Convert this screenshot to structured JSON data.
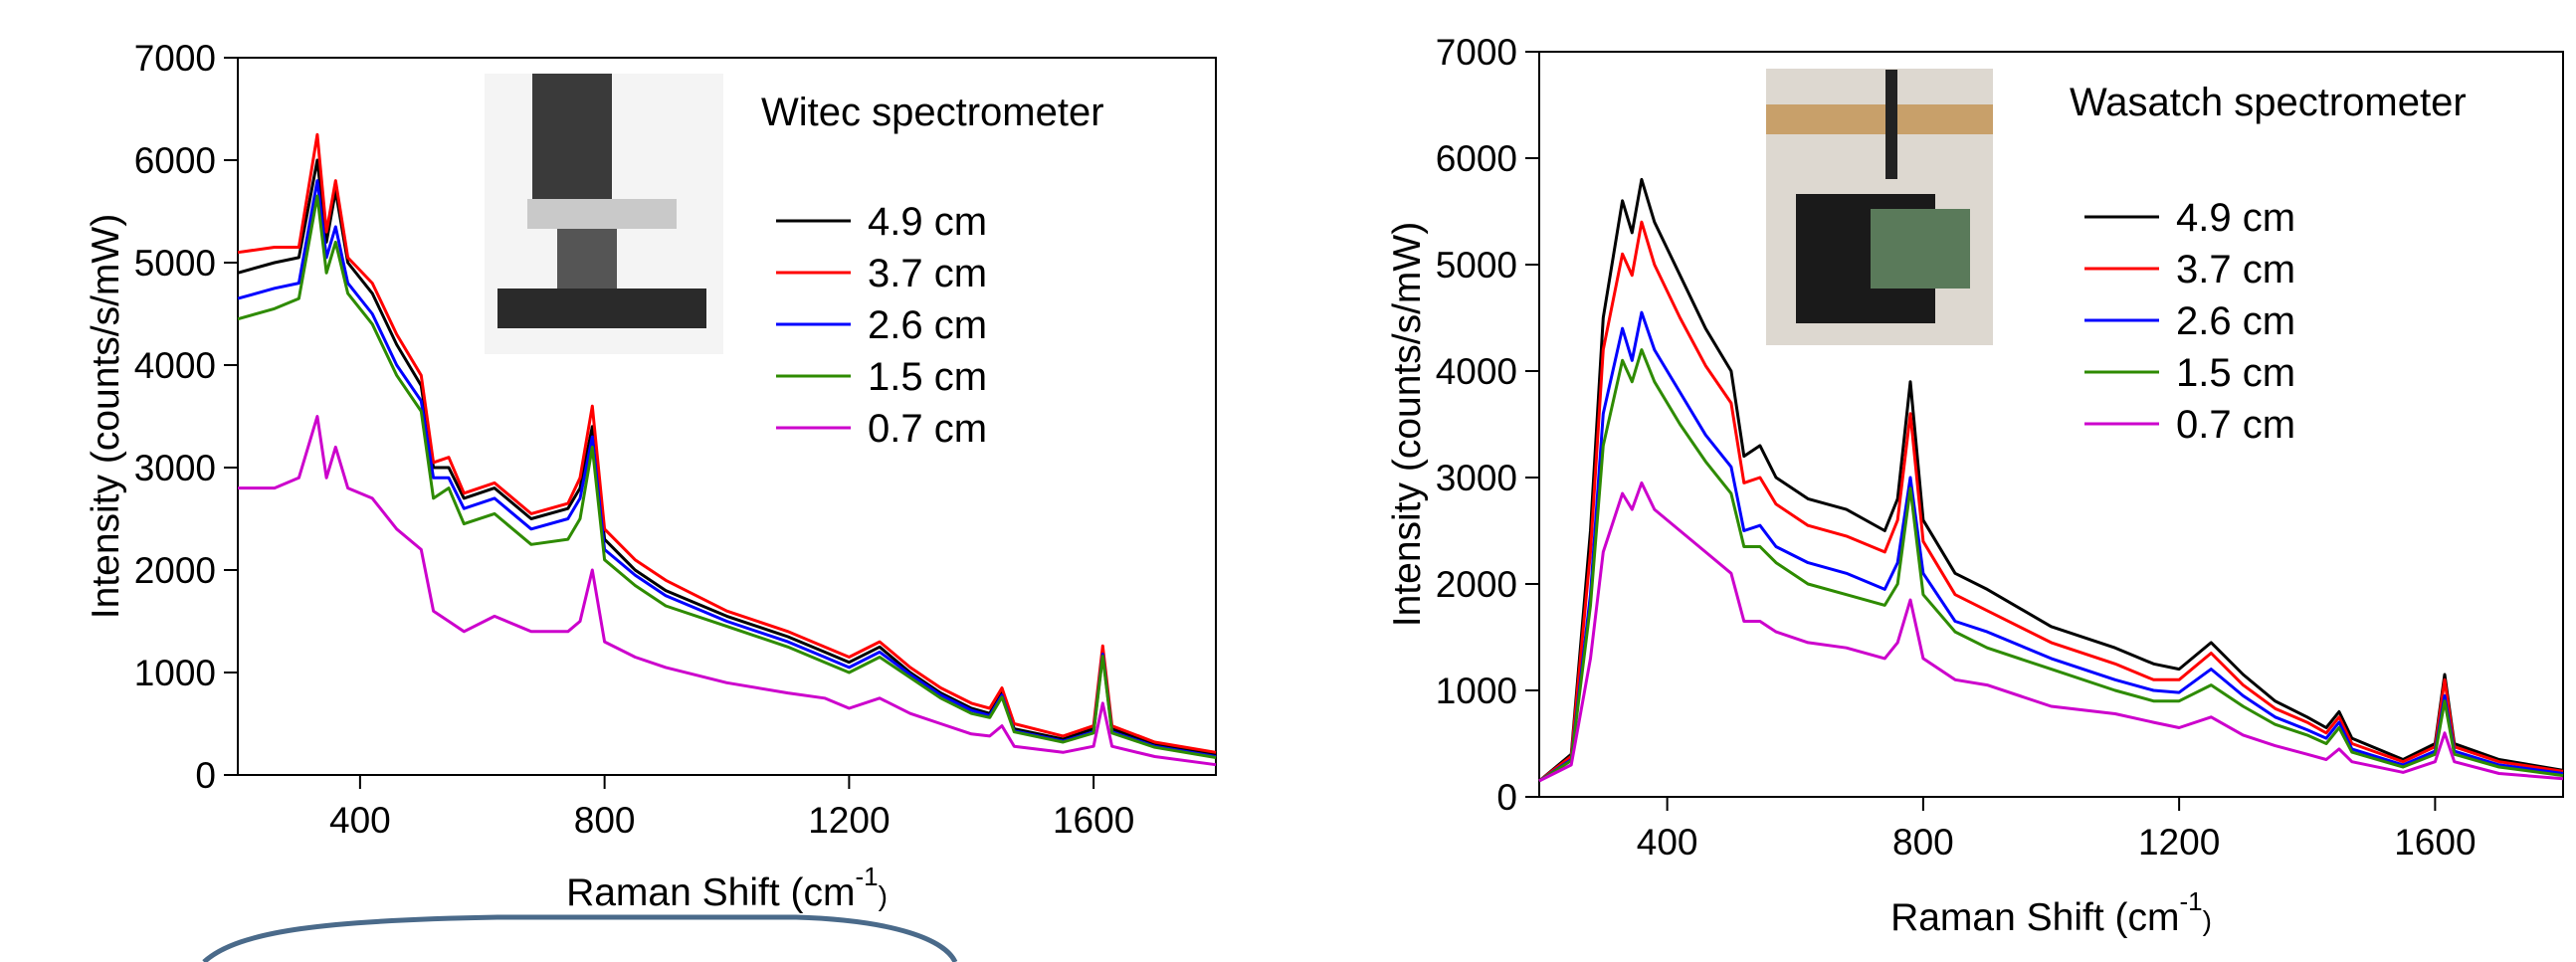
{
  "chart_data": [
    {
      "type": "line",
      "legend_title": "Witec spectrometer",
      "ylabel": "Intensity (counts/s/mW)",
      "xlabel": "Raman Shift (cm",
      "xlabel_sup": "-1",
      "xlabel_end": ")",
      "xlim": [
        200,
        1800
      ],
      "xticks": [
        400,
        800,
        1200,
        1600
      ],
      "ylim": [
        0,
        7000
      ],
      "yticks": [
        0,
        1000,
        2000,
        3000,
        4000,
        5000,
        6000,
        7000
      ],
      "x": [
        200,
        260,
        300,
        330,
        345,
        360,
        380,
        420,
        460,
        500,
        520,
        545,
        570,
        620,
        680,
        740,
        760,
        780,
        800,
        850,
        900,
        1000,
        1100,
        1160,
        1200,
        1250,
        1300,
        1350,
        1400,
        1430,
        1450,
        1470,
        1550,
        1600,
        1615,
        1630,
        1700,
        1800
      ],
      "series": [
        {
          "name": "4.9 cm",
          "color": "#000000",
          "values": [
            4900,
            5000,
            5050,
            6000,
            5200,
            5700,
            5000,
            4700,
            4200,
            3800,
            3000,
            3000,
            2700,
            2800,
            2500,
            2600,
            2800,
            3400,
            2300,
            2000,
            1800,
            1550,
            1350,
            1200,
            1100,
            1250,
            1000,
            800,
            650,
            600,
            800,
            450,
            350,
            450,
            1200,
            450,
            300,
            200
          ]
        },
        {
          "name": "3.7 cm",
          "color": "#ff0000",
          "values": [
            5100,
            5150,
            5150,
            6250,
            5300,
            5800,
            5050,
            4800,
            4300,
            3900,
            3050,
            3100,
            2750,
            2850,
            2550,
            2650,
            2900,
            3600,
            2400,
            2100,
            1900,
            1600,
            1400,
            1250,
            1150,
            1300,
            1050,
            850,
            700,
            650,
            850,
            500,
            380,
            480,
            1260,
            480,
            320,
            220
          ]
        },
        {
          "name": "2.6 cm",
          "color": "#0000ff",
          "values": [
            4650,
            4750,
            4800,
            5800,
            5050,
            5350,
            4800,
            4500,
            4000,
            3650,
            2900,
            2900,
            2600,
            2700,
            2400,
            2500,
            2700,
            3300,
            2200,
            1950,
            1750,
            1500,
            1300,
            1150,
            1050,
            1200,
            980,
            780,
            630,
            580,
            780,
            430,
            330,
            420,
            1180,
            420,
            280,
            180
          ]
        },
        {
          "name": "1.5 cm",
          "color": "#2e8b00",
          "values": [
            4450,
            4550,
            4650,
            5650,
            4900,
            5200,
            4700,
            4400,
            3900,
            3550,
            2700,
            2800,
            2450,
            2550,
            2250,
            2300,
            2500,
            3200,
            2100,
            1850,
            1650,
            1450,
            1250,
            1100,
            1000,
            1150,
            950,
            750,
            600,
            560,
            760,
            420,
            320,
            410,
            1160,
            410,
            270,
            170
          ]
        },
        {
          "name": "0.7 cm",
          "color": "#cc00cc",
          "values": [
            2800,
            2800,
            2900,
            3500,
            2900,
            3200,
            2800,
            2700,
            2400,
            2200,
            1600,
            1500,
            1400,
            1550,
            1400,
            1400,
            1500,
            2000,
            1300,
            1150,
            1050,
            900,
            800,
            750,
            650,
            750,
            600,
            500,
            400,
            380,
            480,
            280,
            220,
            280,
            700,
            280,
            180,
            100
          ]
        }
      ]
    },
    {
      "type": "line",
      "legend_title": "Wasatch spectrometer",
      "ylabel": "Intensity (counts/s/mW)",
      "xlabel": "Raman Shift (cm",
      "xlabel_sup": "-1",
      "xlabel_end": ")",
      "xlim": [
        200,
        1800
      ],
      "xticks": [
        400,
        800,
        1200,
        1600
      ],
      "ylim": [
        0,
        7000
      ],
      "yticks": [
        0,
        1000,
        2000,
        3000,
        4000,
        5000,
        6000,
        7000
      ],
      "x": [
        200,
        250,
        280,
        300,
        330,
        345,
        360,
        380,
        420,
        460,
        500,
        520,
        545,
        570,
        620,
        680,
        740,
        760,
        780,
        800,
        850,
        900,
        1000,
        1100,
        1160,
        1200,
        1250,
        1300,
        1350,
        1400,
        1430,
        1450,
        1470,
        1550,
        1600,
        1615,
        1630,
        1700,
        1800
      ],
      "series": [
        {
          "name": "4.9 cm",
          "color": "#000000",
          "values": [
            150,
            400,
            2500,
            4500,
            5600,
            5300,
            5800,
            5400,
            4900,
            4400,
            4000,
            3200,
            3300,
            3000,
            2800,
            2700,
            2500,
            2800,
            3900,
            2600,
            2100,
            1950,
            1600,
            1400,
            1250,
            1200,
            1450,
            1150,
            900,
            750,
            650,
            800,
            550,
            350,
            500,
            1150,
            500,
            350,
            250
          ]
        },
        {
          "name": "3.7 cm",
          "color": "#ff0000",
          "values": [
            150,
            380,
            2300,
            4200,
            5100,
            4900,
            5400,
            5000,
            4500,
            4050,
            3700,
            2950,
            3000,
            2750,
            2550,
            2450,
            2300,
            2600,
            3600,
            2400,
            1900,
            1750,
            1450,
            1250,
            1100,
            1100,
            1350,
            1050,
            830,
            700,
            600,
            750,
            500,
            330,
            470,
            1100,
            470,
            330,
            240
          ]
        },
        {
          "name": "2.6 cm",
          "color": "#0000ff",
          "values": [
            150,
            350,
            1900,
            3600,
            4400,
            4100,
            4550,
            4200,
            3800,
            3400,
            3100,
            2500,
            2550,
            2350,
            2200,
            2100,
            1950,
            2200,
            3000,
            2100,
            1650,
            1550,
            1300,
            1100,
            1000,
            980,
            1200,
            950,
            750,
            630,
            550,
            700,
            450,
            300,
            430,
            950,
            430,
            300,
            220
          ]
        },
        {
          "name": "1.5 cm",
          "color": "#2e8b00",
          "values": [
            150,
            340,
            1800,
            3300,
            4100,
            3900,
            4200,
            3900,
            3500,
            3150,
            2850,
            2350,
            2350,
            2200,
            2000,
            1900,
            1800,
            2000,
            2900,
            1900,
            1550,
            1400,
            1200,
            1000,
            900,
            900,
            1050,
            850,
            680,
            580,
            500,
            650,
            420,
            280,
            400,
            900,
            400,
            280,
            200
          ]
        },
        {
          "name": "0.7 cm",
          "color": "#cc00cc",
          "values": [
            150,
            300,
            1300,
            2300,
            2850,
            2700,
            2950,
            2700,
            2500,
            2300,
            2100,
            1650,
            1650,
            1550,
            1450,
            1400,
            1300,
            1450,
            1850,
            1300,
            1100,
            1050,
            850,
            780,
            700,
            650,
            750,
            580,
            480,
            400,
            350,
            450,
            330,
            230,
            330,
            600,
            330,
            220,
            170
          ]
        }
      ]
    }
  ]
}
